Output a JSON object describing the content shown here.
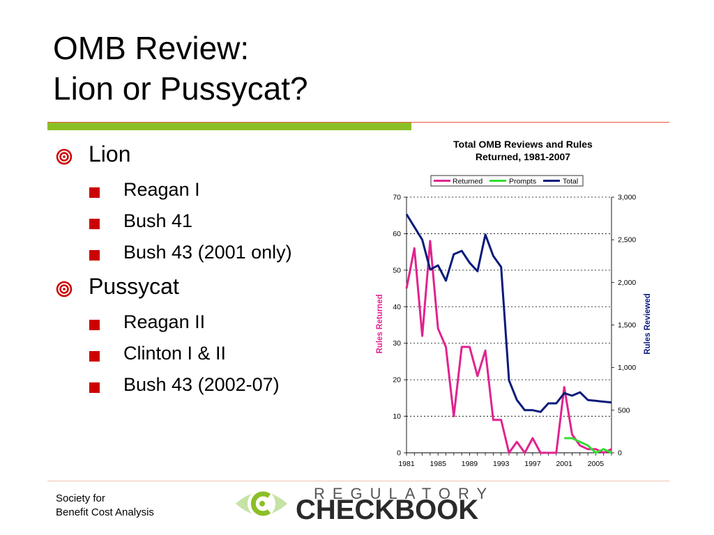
{
  "slide": {
    "title_line1": "OMB Review:",
    "title_line2": "Lion or Pussycat?",
    "bullets": [
      {
        "label": "Lion",
        "items": [
          "Reagan I",
          "Bush 41",
          "Bush 43 (2001 only)"
        ]
      },
      {
        "label": "Pussycat",
        "items": [
          "Reagan II",
          "Clinton I & II",
          "Bush 43 (2002-07)"
        ]
      }
    ],
    "footer_line1": "Society for",
    "footer_line2": "Benefit Cost Analysis",
    "logo_word1": "REGULATORY",
    "logo_word2": "CHECKBOOK"
  },
  "colors": {
    "accent_red": "#cc0000",
    "accent_green": "#8cbf26",
    "returned": "#e0238f",
    "prompts": "#33dd33",
    "total": "#0a1a7a"
  },
  "chart_data": {
    "type": "line",
    "title_line1": "Total OMB Reviews and Rules",
    "title_line2": "Returned, 1981-2007",
    "ylabel_left": "Rules Returned",
    "ylabel_right": "Rules Reviewed",
    "ylim_left": [
      0,
      70
    ],
    "ylim_right": [
      0,
      3000
    ],
    "xlim": [
      1981,
      2007
    ],
    "left_ticks": [
      "0",
      "10",
      "20",
      "30",
      "40",
      "50",
      "60",
      "70"
    ],
    "right_ticks": [
      "0",
      "500",
      "1,000",
      "1,500",
      "2,000",
      "2,500",
      "3,000"
    ],
    "x_ticks": [
      "1981",
      "1985",
      "1989",
      "1993",
      "1997",
      "2001",
      "2005"
    ],
    "legend_position": "top",
    "grid": true,
    "series": [
      {
        "name": "Returned",
        "axis": "left",
        "x": [
          1981,
          1982,
          1983,
          1984,
          1985,
          1986,
          1987,
          1988,
          1989,
          1990,
          1991,
          1992,
          1993,
          1994,
          1995,
          1996,
          1997,
          1998,
          1999,
          2000,
          2001,
          2002,
          2003,
          2004,
          2005,
          2006,
          2007
        ],
        "values": [
          45,
          56,
          32,
          58,
          34,
          29,
          10,
          29,
          29,
          21,
          28,
          9,
          9,
          0,
          3,
          0,
          4,
          0,
          0,
          0,
          18,
          5,
          2,
          1,
          1,
          0,
          1
        ]
      },
      {
        "name": "Prompts",
        "axis": "left",
        "x": [
          2001,
          2002,
          2003,
          2004,
          2005,
          2006,
          2007
        ],
        "values": [
          4,
          4,
          3,
          2,
          0,
          1,
          0
        ]
      },
      {
        "name": "Total",
        "axis": "right",
        "x": [
          1981,
          1982,
          1983,
          1984,
          1985,
          1986,
          1987,
          1988,
          1989,
          1990,
          1991,
          1992,
          1993,
          1994,
          1995,
          1996,
          1997,
          1998,
          1999,
          2000,
          2001,
          2002,
          2003,
          2004,
          2005,
          2006,
          2007
        ],
        "values": [
          2800,
          2650,
          2500,
          2150,
          2200,
          2020,
          2330,
          2370,
          2230,
          2130,
          2560,
          2310,
          2180,
          850,
          620,
          500,
          500,
          480,
          580,
          580,
          700,
          670,
          710,
          620,
          610,
          600,
          590
        ]
      }
    ]
  }
}
